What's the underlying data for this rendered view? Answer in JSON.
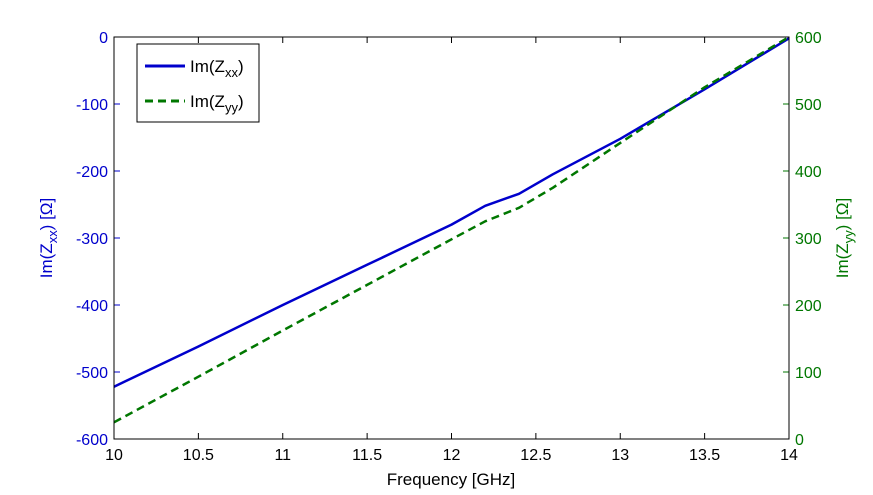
{
  "chart_data": {
    "type": "line",
    "xlabel": "Frequency [GHz]",
    "x_ticks": [
      "10",
      "10.5",
      "11",
      "11.5",
      "12",
      "12.5",
      "13",
      "13.5",
      "14"
    ],
    "xlim": [
      10,
      14
    ],
    "ylabel_left": {
      "base": "Im(Z",
      "sub": "xx",
      "tail": ") [Ω]"
    },
    "ylim_left": [
      -600,
      0
    ],
    "y_ticks_left": [
      "0",
      "-100",
      "-200",
      "-300",
      "-400",
      "-500",
      "-600"
    ],
    "ylabel_right": {
      "base": "Im(Z",
      "sub": "yy",
      "tail": ") [Ω]"
    },
    "ylim_right": [
      0,
      600
    ],
    "y_ticks_right": [
      "600",
      "500",
      "400",
      "300",
      "200",
      "100",
      "0"
    ],
    "legend_position": "top-left",
    "grid": false,
    "series": [
      {
        "legend": {
          "base": "Im(Z",
          "sub": "xx",
          "tail": ")"
        },
        "axis": "left",
        "color": "#0000cc",
        "style": "solid",
        "x": [
          10,
          10.5,
          11,
          11.5,
          12,
          12.2,
          12.4,
          12.6,
          13,
          13.5,
          14
        ],
        "y": [
          -522,
          -462,
          -400,
          -340,
          -280,
          -252,
          -234,
          -205,
          -152,
          -78,
          -2
        ]
      },
      {
        "legend": {
          "base": "Im(Z",
          "sub": "yy",
          "tail": ")"
        },
        "axis": "right",
        "color": "#007700",
        "style": "dashed",
        "x": [
          10,
          10.5,
          11,
          11.5,
          12,
          12.2,
          12.4,
          12.6,
          13,
          13.5,
          14
        ],
        "y": [
          25,
          93,
          162,
          230,
          298,
          325,
          345,
          375,
          442,
          525,
          600
        ]
      }
    ]
  },
  "colors": {
    "left_axis": "#0000cc",
    "right_axis": "#007700"
  }
}
